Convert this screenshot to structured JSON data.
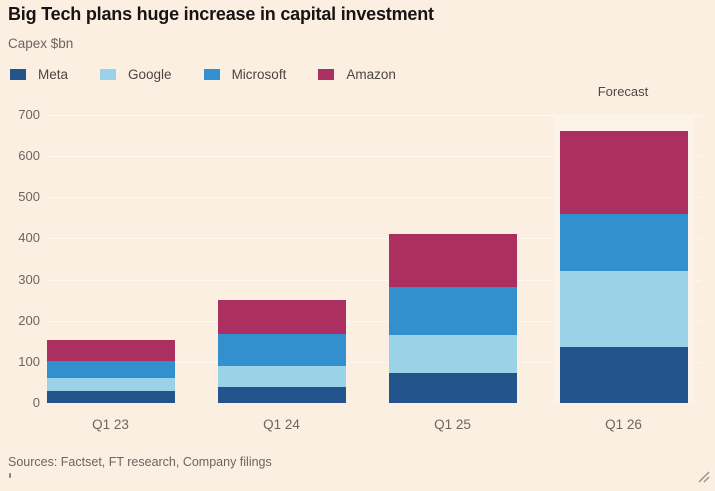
{
  "title": "Big Tech plans huge increase in capital investment",
  "subtitle": "Capex $bn",
  "sources": "Sources: Factset, FT research, Company filings",
  "annotations": {
    "forecast_label": "Forecast"
  },
  "colors": {
    "background": "#FBEFE2",
    "forecast_band": "#FCF4E9",
    "gridline": "#FEF8EF",
    "title_text": "#181314",
    "muted_text": "#6B6560",
    "legend_text": "#4B4642"
  },
  "icons": {
    "resize_grip": "diagonal-resize-lines"
  },
  "chart_data": {
    "type": "bar",
    "stacked": true,
    "title": "Big Tech plans huge increase in capital investment",
    "ylabel": "Capex $bn",
    "xlabel": "",
    "categories": [
      "Q1 23",
      "Q1 24",
      "Q1 25",
      "Q1 26"
    ],
    "series": [
      {
        "name": "Meta",
        "color": "#23558C",
        "values": [
          28,
          39,
          72,
          135
        ]
      },
      {
        "name": "Google",
        "color": "#9AD3E8",
        "values": [
          32,
          52,
          93,
          185
        ]
      },
      {
        "name": "Microsoft",
        "color": "#3390CE",
        "values": [
          42,
          76,
          117,
          140
        ]
      },
      {
        "name": "Amazon",
        "color": "#AB3061",
        "values": [
          52,
          83,
          128,
          200
        ]
      }
    ],
    "totals": [
      154,
      250,
      410,
      660
    ],
    "ylim": [
      0,
      700
    ],
    "yticks": [
      0,
      100,
      200,
      300,
      400,
      500,
      600,
      700
    ],
    "grid": true,
    "legend_position": "top",
    "forecast": {
      "category": "Q1 26",
      "label": "Forecast",
      "band_range": [
        0,
        700
      ]
    }
  }
}
